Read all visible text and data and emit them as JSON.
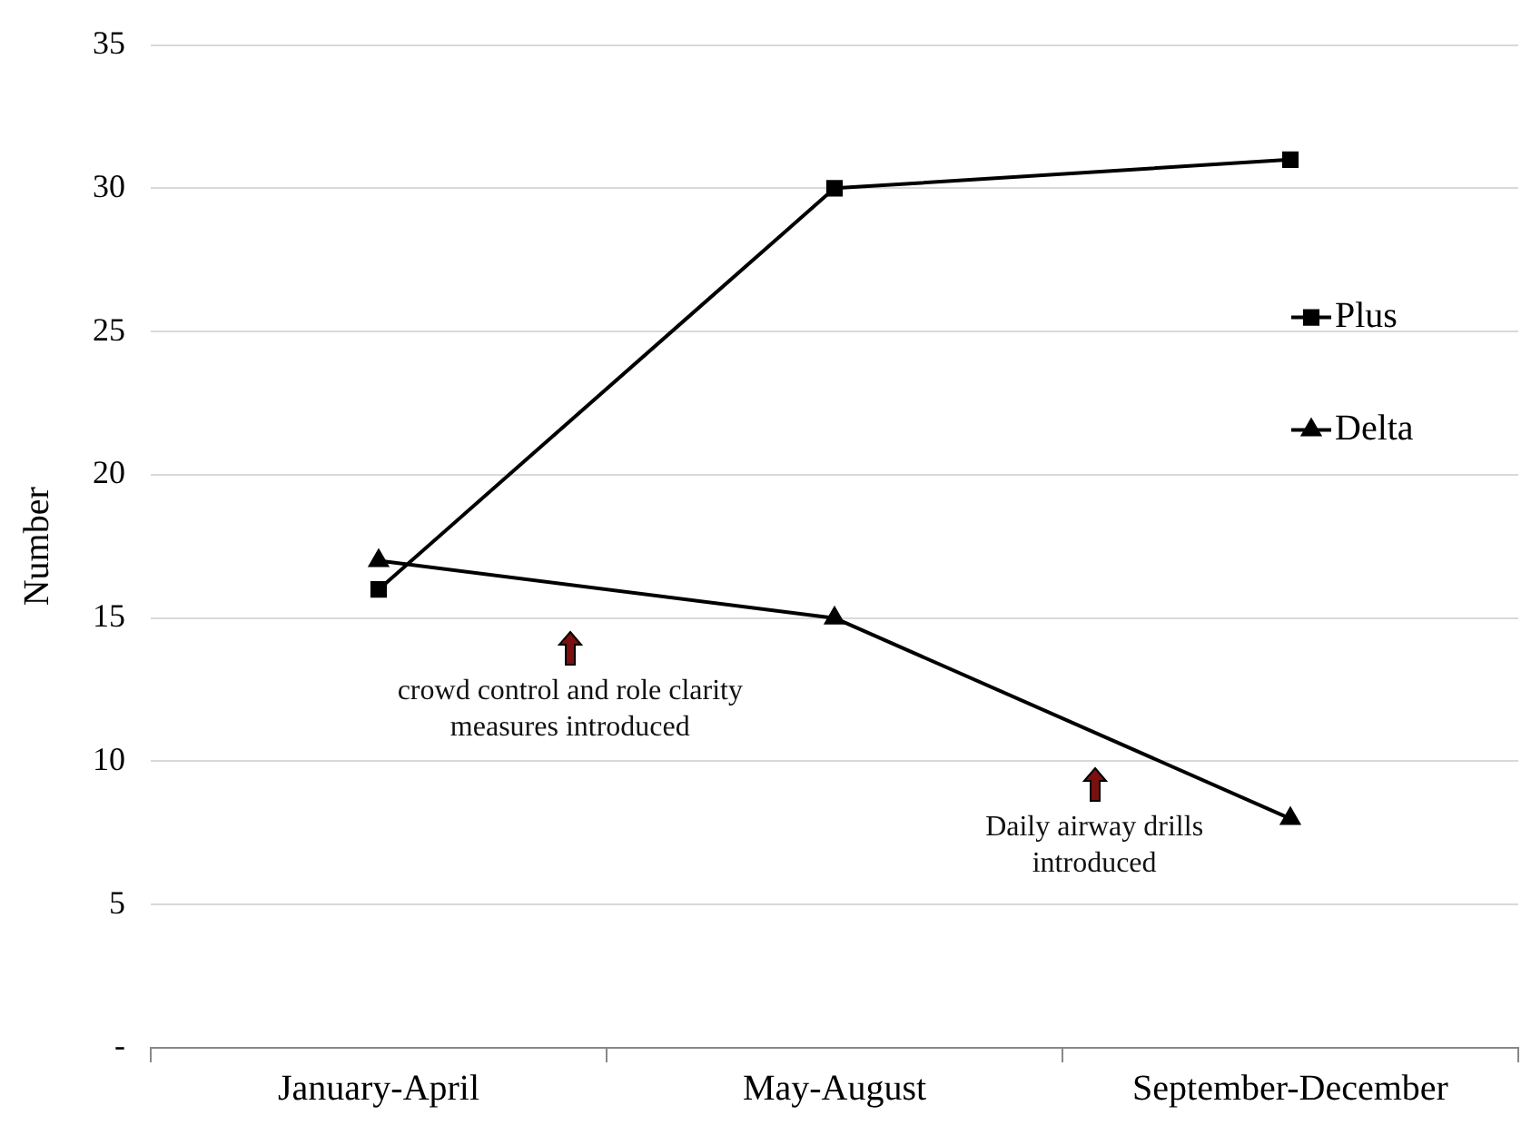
{
  "chart_data": {
    "type": "line",
    "ylabel": "Number",
    "categories": [
      "January-April",
      "May-August",
      "September-December"
    ],
    "series": [
      {
        "name": "Plus",
        "color": "#000000",
        "marker": "square",
        "values": [
          16,
          30,
          31
        ]
      },
      {
        "name": "Delta",
        "color": "#000000",
        "marker": "triangle",
        "values": [
          17,
          15,
          8
        ]
      }
    ],
    "ylim": [
      0,
      35
    ],
    "yticks": [
      {
        "value": 0,
        "label": "-"
      },
      5,
      10,
      15,
      20,
      25,
      30,
      35
    ],
    "grid": "y",
    "legend": "right",
    "annotations": [
      "crowd control and role clarity measures introduced",
      "Daily airway drills introduced"
    ]
  }
}
